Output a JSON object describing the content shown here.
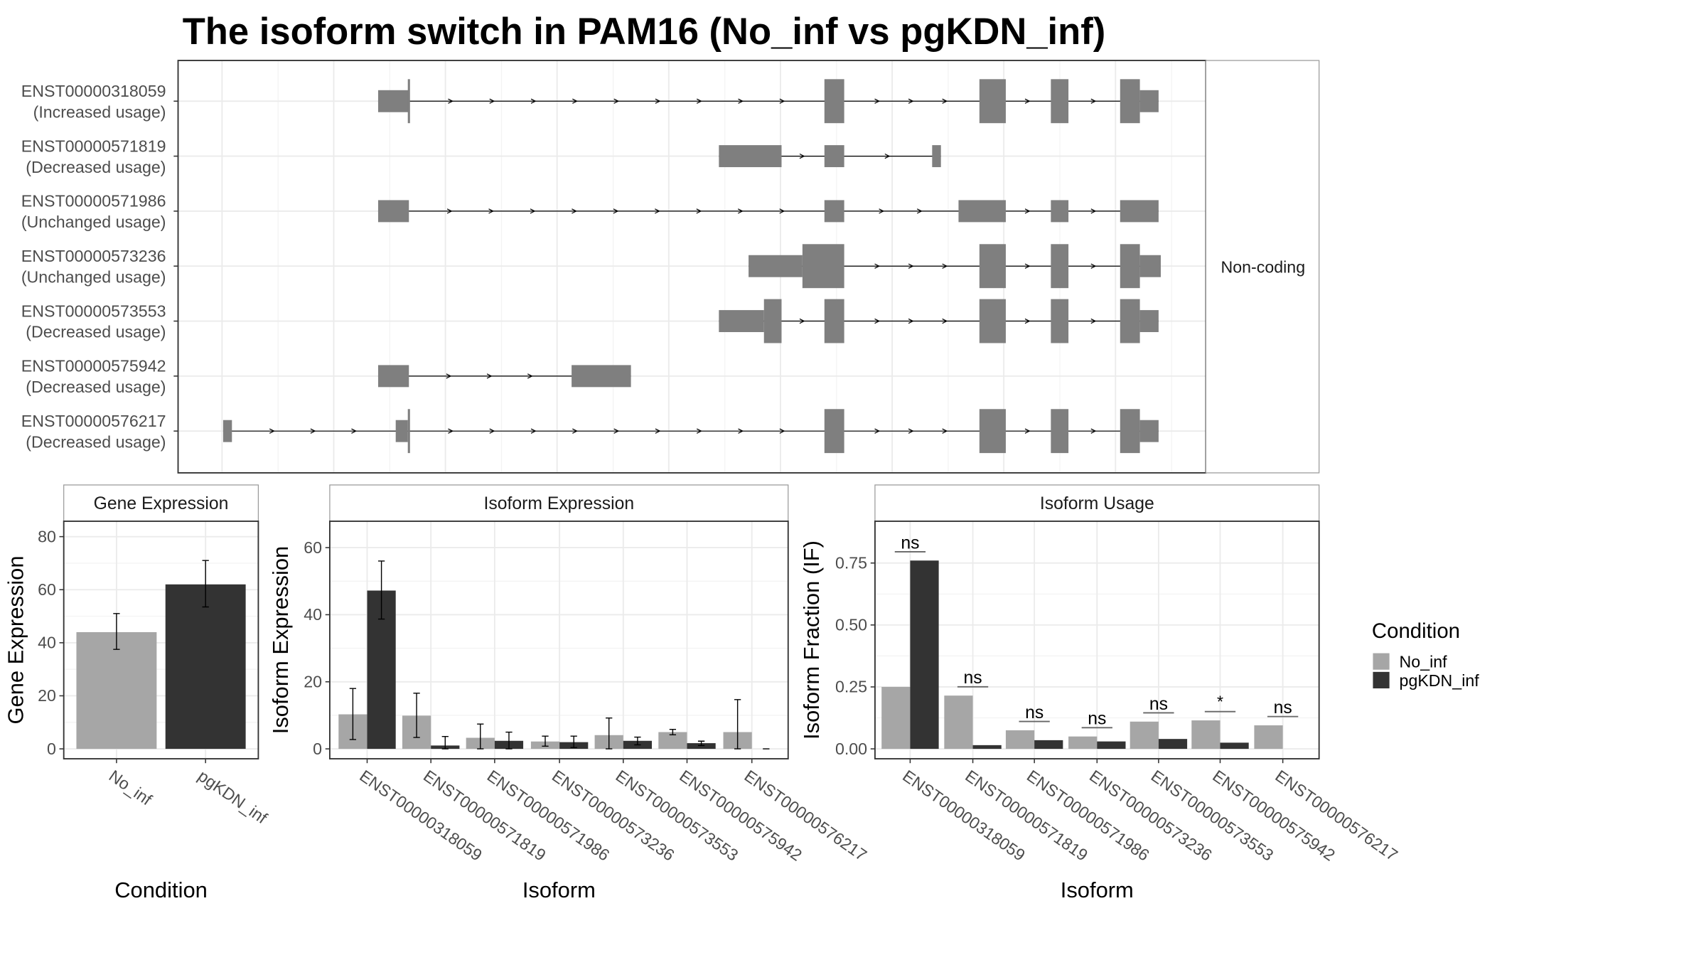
{
  "title": "The isoform switch in PAM16 (No_inf vs pgKDN_inf)",
  "colors": {
    "no_inf": "#a6a6a6",
    "pgkdn_inf": "#333333",
    "exon": "#7f7f7f"
  },
  "structure": {
    "strip_label": "Non-coding",
    "transcripts": [
      {
        "id": "ENST00000318059",
        "usage": "(Increased usage)",
        "exons": [
          [
            182,
            210,
            "s"
          ],
          [
            209,
            211,
            "t"
          ],
          [
            588,
            606,
            "t"
          ],
          [
            729,
            753,
            "t"
          ],
          [
            794,
            810,
            "t"
          ],
          [
            857,
            875,
            "t"
          ],
          [
            875,
            892,
            "s"
          ]
        ]
      },
      {
        "id": "ENST00000571819",
        "usage": "(Decreased usage)",
        "exons": [
          [
            492,
            549,
            "s"
          ],
          [
            588,
            606,
            "s"
          ],
          [
            686,
            694,
            "s"
          ]
        ]
      },
      {
        "id": "ENST00000571986",
        "usage": "(Unchanged usage)",
        "exons": [
          [
            182,
            210,
            "s"
          ],
          [
            588,
            606,
            "s"
          ],
          [
            710,
            753,
            "s"
          ],
          [
            794,
            810,
            "s"
          ],
          [
            857,
            892,
            "s"
          ]
        ]
      },
      {
        "id": "ENST00000573236",
        "usage": "(Unchanged usage)",
        "exons": [
          [
            519,
            568,
            "s"
          ],
          [
            568,
            606,
            "t"
          ],
          [
            729,
            753,
            "t"
          ],
          [
            794,
            810,
            "t"
          ],
          [
            857,
            875,
            "t"
          ],
          [
            875,
            894,
            "s"
          ]
        ]
      },
      {
        "id": "ENST00000573553",
        "usage": "(Decreased usage)",
        "exons": [
          [
            492,
            533,
            "s"
          ],
          [
            533,
            549,
            "t"
          ],
          [
            588,
            606,
            "t"
          ],
          [
            729,
            753,
            "t"
          ],
          [
            794,
            810,
            "t"
          ],
          [
            857,
            875,
            "t"
          ],
          [
            875,
            892,
            "s"
          ]
        ]
      },
      {
        "id": "ENST00000575942",
        "usage": "(Decreased usage)",
        "exons": [
          [
            182,
            210,
            "s"
          ],
          [
            358,
            412,
            "s"
          ]
        ]
      },
      {
        "id": "ENST00000576217",
        "usage": "(Decreased usage)",
        "exons": [
          [
            41,
            49,
            "s"
          ],
          [
            198,
            209,
            "s"
          ],
          [
            209,
            211,
            "t"
          ],
          [
            588,
            606,
            "t"
          ],
          [
            729,
            753,
            "t"
          ],
          [
            794,
            810,
            "t"
          ],
          [
            857,
            875,
            "t"
          ],
          [
            875,
            892,
            "s"
          ]
        ]
      }
    ]
  },
  "legend": {
    "title": "Condition",
    "items": [
      "No_inf",
      "pgKDN_inf"
    ]
  },
  "chart_data": [
    {
      "type": "bar",
      "title": "Gene Expression",
      "xlabel": "Condition",
      "ylabel": "Gene Expression",
      "ylim": [
        0,
        88
      ],
      "yticks": [
        0,
        20,
        40,
        60,
        80
      ],
      "categories": [
        "No_inf",
        "pgKDN_inf"
      ],
      "values": [
        44,
        62
      ],
      "errors": [
        [
          37.5,
          51
        ],
        [
          53.5,
          71
        ]
      ]
    },
    {
      "type": "bar",
      "title": "Isoform Expression",
      "xlabel": "Isoform",
      "ylabel": "Isoform Expression",
      "ylim": [
        0,
        67
      ],
      "yticks": [
        0,
        20,
        40,
        60
      ],
      "categories": [
        "ENST00000318059",
        "ENST00000571819",
        "ENST00000571986",
        "ENST00000573236",
        "ENST00000573553",
        "ENST00000575942",
        "ENST00000576217"
      ],
      "series": [
        {
          "name": "No_inf",
          "values": [
            10.3,
            9.9,
            3.3,
            2.2,
            4.1,
            5.0,
            5.0
          ],
          "errors": [
            [
              2.8,
              18
            ],
            [
              3.4,
              16.6
            ],
            [
              0,
              7.4
            ],
            [
              0.8,
              3.8
            ],
            [
              0,
              9.2
            ],
            [
              4.2,
              5.8
            ],
            [
              0,
              14.7
            ]
          ]
        },
        {
          "name": "pgKDN_inf",
          "values": [
            47.2,
            1.0,
            2.4,
            2.0,
            2.4,
            1.7,
            0
          ],
          "errors": [
            [
              38.7,
              56
            ],
            [
              0,
              3.7
            ],
            [
              0,
              5
            ],
            [
              0.4,
              3.8
            ],
            [
              1.2,
              3.5
            ],
            [
              1,
              2.3
            ],
            [
              0,
              0
            ]
          ]
        }
      ]
    },
    {
      "type": "bar",
      "title": "Isoform Usage",
      "xlabel": "Isoform",
      "ylabel": "Isoform Fraction (IF)",
      "ylim": [
        0,
        0.83
      ],
      "yticks": [
        "0.00",
        "0.25",
        "0.50",
        "0.75"
      ],
      "categories": [
        "ENST00000318059",
        "ENST00000571819",
        "ENST00000571986",
        "ENST00000573236",
        "ENST00000573553",
        "ENST00000575942",
        "ENST00000576217"
      ],
      "series": [
        {
          "name": "No_inf",
          "values": [
            0.25,
            0.215,
            0.075,
            0.05,
            0.11,
            0.115,
            0.095
          ]
        },
        {
          "name": "pgKDN_inf",
          "values": [
            0.76,
            0.015,
            0.035,
            0.03,
            0.04,
            0.025,
            0
          ]
        }
      ],
      "significance": [
        "ns",
        "ns",
        "ns",
        "ns",
        "ns",
        "*",
        "ns"
      ]
    }
  ]
}
